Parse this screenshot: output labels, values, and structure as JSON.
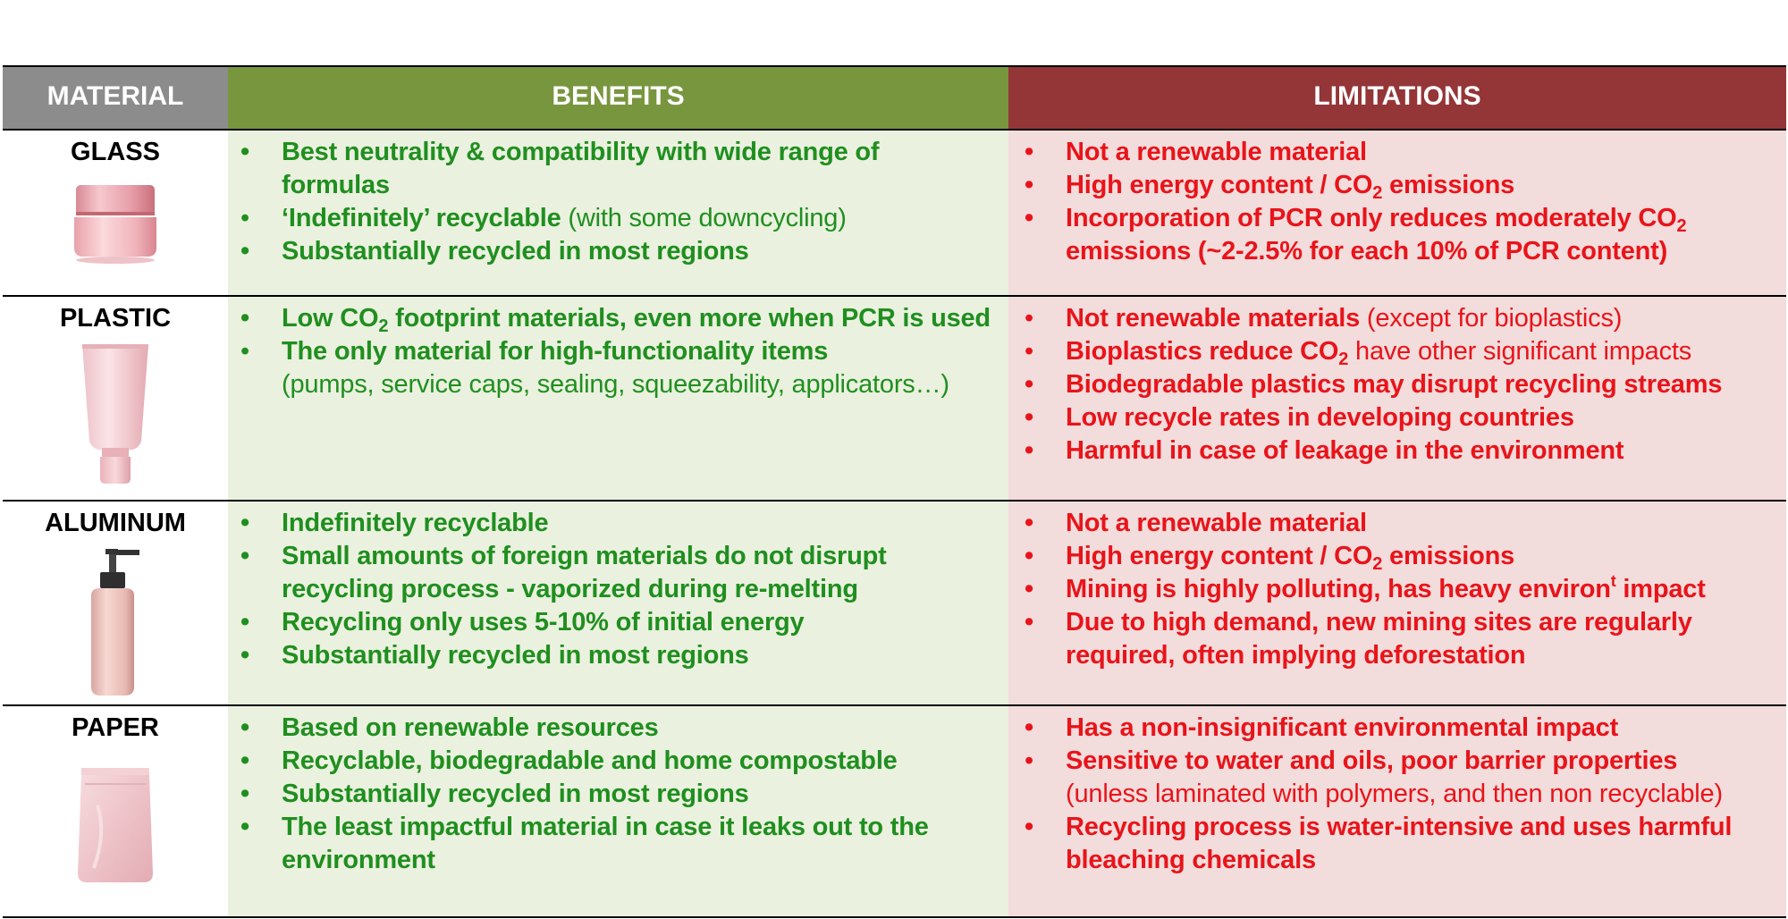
{
  "header": {
    "material": "MATERIAL",
    "benefits": "BENEFITS",
    "limitations": "LIMITATIONS"
  },
  "glass": {
    "name": "GLASS",
    "icon": "cosmetic-jar-icon",
    "benefits": {
      "b1": "Best neutrality & compatibility with wide range of formulas",
      "b2_bold": "‘Indefinitely’ recyclable",
      "b2_rest": " (with some downcycling)",
      "b3": "Substantially recycled in most regions"
    },
    "limitations": {
      "l1": "Not a renewable material",
      "l2_a": "High energy content / CO",
      "l2_sub": "2",
      "l2_b": " emissions",
      "l3_a": "Incorporation of PCR only reduces moderately CO",
      "l3_sub": "2",
      "l3_b": " emissions (~2-2.5% for each 10% of PCR content)"
    }
  },
  "plastic": {
    "name": "PLASTIC",
    "icon": "cosmetic-tube-icon",
    "benefits": {
      "b1_a": "Low CO",
      "b1_sub": "2",
      "b1_b": " footprint materials, even more when PCR is used",
      "b2_bold": "The only material for high-functionality items",
      "b2_rest": "(pumps, service caps, sealing, squeezability, applicators…)"
    },
    "limitations": {
      "l1_bold": "Not renewable materials",
      "l1_rest": " (except for bioplastics)",
      "l2_a": "Bioplastics reduce CO",
      "l2_sub": "2",
      "l2_rest": " have other significant impacts",
      "l3": "Biodegradable plastics may disrupt recycling streams",
      "l4": "Low recycle rates in developing countries",
      "l5": "Harmful in case of leakage in the environment"
    }
  },
  "aluminum": {
    "name": "ALUMINUM",
    "icon": "pump-bottle-icon",
    "benefits": {
      "b1": "Indefinitely recyclable",
      "b2": "Small amounts of foreign materials do not disrupt recycling process - vaporized during re-melting",
      "b3": "Recycling only uses 5-10% of initial energy",
      "b4": "Substantially recycled in most regions"
    },
    "limitations": {
      "l1": "Not a renewable material",
      "l2_a": "High energy content / CO",
      "l2_sub": "2",
      "l2_b": " emissions",
      "l3_a": "Mining is highly polluting, has heavy environ",
      "l3_sup": "t",
      "l3_b": " impact",
      "l4": "Due to high demand, new mining sites are regularly required, often implying deforestation"
    }
  },
  "paper": {
    "name": "PAPER",
    "icon": "paper-pouch-icon",
    "benefits": {
      "b1": "Based on renewable resources",
      "b2": "Recyclable, biodegradable and home compostable",
      "b3": "Substantially recycled in most regions",
      "b4": "The least impactful material in case it leaks out to the environment"
    },
    "limitations": {
      "l1": "Has a non-insignificant environmental impact",
      "l2_bold": "Sensitive to water and oils, poor barrier properties",
      "l2_rest": "(unless laminated with polymers, and then non recyclable)",
      "l3": "Recycling process is water-intensive and uses harmful bleaching chemicals"
    }
  }
}
